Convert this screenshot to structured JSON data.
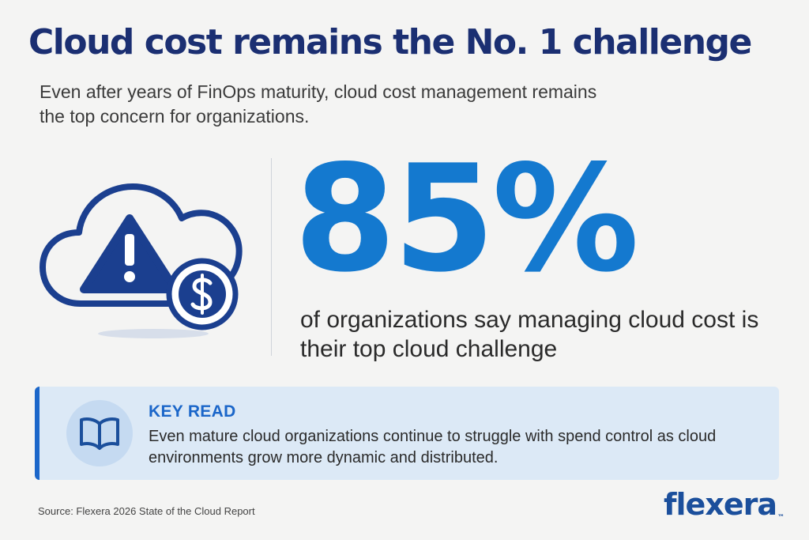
{
  "header": {
    "title": "Cloud cost remains the No. 1 challenge",
    "subtitle": "Even after years of FinOps maturity, cloud cost management remains the top concern for organizations."
  },
  "stat": {
    "value": "85%",
    "description": "of organizations say managing cloud cost is their top cloud challenge"
  },
  "key_read": {
    "heading": "KEY READ",
    "text": "Even mature cloud organizations continue to struggle with spend control as cloud environments grow more dynamic and distributed."
  },
  "footer": {
    "source": "Source: Flexera 2026 State of the Cloud Report",
    "logo_text": "flexera",
    "logo_mark": "™"
  },
  "icons": {
    "hero": "cloud-warning-dollar-icon",
    "key_read": "open-book-icon"
  },
  "colors": {
    "title": "#1b2f72",
    "accent_blue": "#1479cf",
    "card_background": "#dce9f6",
    "card_accent": "#1b66c9",
    "logo": "#1b4f9c"
  }
}
